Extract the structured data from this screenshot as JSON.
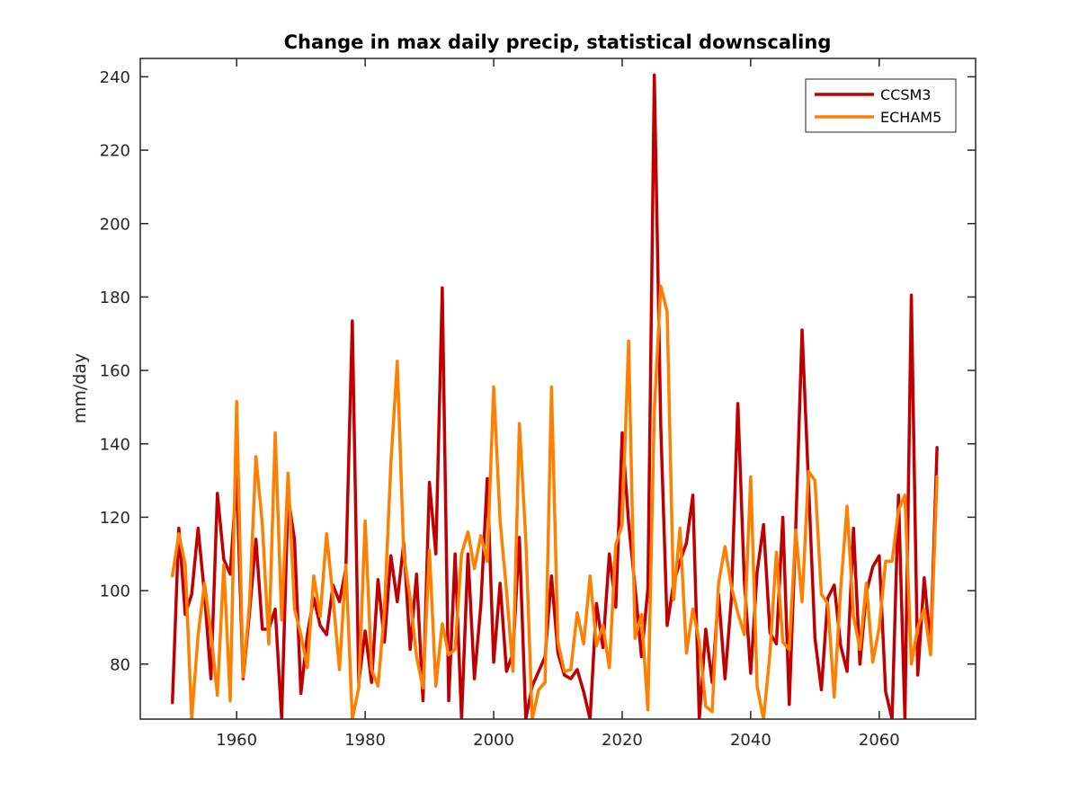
{
  "chart_data": {
    "type": "line",
    "title": "Change in max daily precip, statistical downscaling",
    "xlabel": "",
    "ylabel": "mm/day",
    "xlim": [
      1945,
      2075
    ],
    "ylim": [
      65,
      245
    ],
    "xticks": [
      1960,
      1980,
      2000,
      2020,
      2040,
      2060
    ],
    "yticks": [
      80,
      100,
      120,
      140,
      160,
      180,
      200,
      220,
      240
    ],
    "grid": false,
    "legend_position": "top-right",
    "x": [
      1950,
      1951,
      1952,
      1953,
      1954,
      1955,
      1956,
      1957,
      1958,
      1959,
      1960,
      1961,
      1962,
      1963,
      1964,
      1965,
      1966,
      1967,
      1968,
      1969,
      1970,
      1971,
      1972,
      1973,
      1974,
      1975,
      1976,
      1977,
      1978,
      1979,
      1980,
      1981,
      1982,
      1983,
      1984,
      1985,
      1986,
      1987,
      1988,
      1989,
      1990,
      1991,
      1992,
      1993,
      1994,
      1995,
      1996,
      1997,
      1998,
      1999,
      2000,
      2001,
      2002,
      2003,
      2004,
      2005,
      2006,
      2007,
      2008,
      2009,
      2010,
      2011,
      2012,
      2013,
      2014,
      2015,
      2016,
      2017,
      2018,
      2019,
      2020,
      2021,
      2022,
      2023,
      2024,
      2025,
      2026,
      2027,
      2028,
      2029,
      2030,
      2031,
      2032,
      2033,
      2034,
      2035,
      2036,
      2037,
      2038,
      2039,
      2040,
      2041,
      2042,
      2043,
      2044,
      2045,
      2046,
      2047,
      2048,
      2049,
      2050,
      2051,
      2052,
      2053,
      2054,
      2055,
      2056,
      2057,
      2058,
      2059,
      2060,
      2061,
      2062,
      2063,
      2064,
      2065,
      2066,
      2067,
      2068,
      2069
    ],
    "series": [
      {
        "name": "CCSM3",
        "color": "#c00000",
        "values": [
          69.5,
          117,
          93.5,
          99,
          117,
          99,
          76,
          126.5,
          108.5,
          104.5,
          131,
          76,
          94,
          114,
          89.5,
          89.5,
          95,
          65,
          125.5,
          114,
          72,
          88,
          98,
          90.5,
          88,
          101.5,
          97,
          106,
          173.5,
          75,
          89,
          75,
          103,
          86,
          109.5,
          97,
          113,
          84,
          104.5,
          70,
          129.5,
          110,
          182.5,
          70,
          110,
          65,
          110,
          76,
          96,
          130.5,
          80.5,
          102,
          78,
          83,
          114.5,
          65,
          74,
          78,
          82,
          104,
          83,
          77,
          76,
          78.5,
          72.5,
          65,
          96.5,
          84.5,
          110,
          95.5,
          143,
          118.5,
          101,
          82,
          100.5,
          240.5,
          145,
          90.5,
          102,
          108,
          113,
          126,
          65,
          89.5,
          75,
          99,
          76,
          98,
          151,
          103,
          77.5,
          105,
          118,
          88.5,
          85.5,
          120,
          69,
          116.5,
          171,
          129,
          87,
          73,
          98,
          101.5,
          85,
          78,
          117,
          80,
          99.5,
          106.5,
          109.5,
          72.5,
          65,
          126,
          65,
          180.5,
          77,
          103.5,
          85,
          139
        ]
      },
      {
        "name": "ECHAM5",
        "color": "#ff8000",
        "values": [
          104,
          115.5,
          107,
          65,
          88,
          102,
          88.5,
          71.5,
          107,
          70,
          151.5,
          76.5,
          96.5,
          136.5,
          118,
          85.5,
          143,
          92,
          132,
          95,
          88,
          79,
          104,
          93,
          115.5,
          98,
          78.5,
          107,
          65,
          73.5,
          119,
          78.5,
          74,
          94.5,
          134.5,
          162.5,
          110,
          98,
          82,
          73.5,
          111,
          74,
          91,
          82.5,
          84,
          110,
          116,
          106,
          115,
          108,
          155.5,
          119,
          100,
          78,
          145.5,
          114,
          65,
          73,
          75,
          155.5,
          86,
          78,
          78.5,
          94,
          85.5,
          104,
          85,
          90.5,
          79,
          112.5,
          118,
          168,
          87,
          93.5,
          67.5,
          149,
          183,
          176,
          97.5,
          117,
          83,
          95,
          86,
          68.5,
          67,
          102,
          112,
          101,
          94,
          88,
          131,
          74,
          65,
          83,
          110.5,
          86,
          84,
          116.5,
          97,
          132.5,
          130,
          99,
          96.5,
          71,
          100.5,
          123,
          93,
          84,
          102,
          80.5,
          90,
          108,
          108,
          122,
          126,
          80,
          90,
          95,
          82.5,
          131
        ]
      }
    ]
  },
  "legend": {
    "entries": [
      "CCSM3",
      "ECHAM5"
    ]
  }
}
